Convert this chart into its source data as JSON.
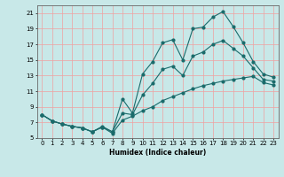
{
  "xlabel": "Humidex (Indice chaleur)",
  "bg_color": "#c8e8e8",
  "grid_color": "#f0a0a0",
  "line_color": "#1a6b6b",
  "xlim": [
    -0.5,
    23.5
  ],
  "ylim": [
    5,
    22
  ],
  "xticks": [
    0,
    1,
    2,
    3,
    4,
    5,
    6,
    7,
    8,
    9,
    10,
    11,
    12,
    13,
    14,
    15,
    16,
    17,
    18,
    19,
    20,
    21,
    22,
    23
  ],
  "yticks": [
    5,
    7,
    9,
    11,
    13,
    15,
    17,
    19,
    21
  ],
  "line_top_x": [
    0,
    1,
    2,
    3,
    4,
    5,
    6,
    7,
    8,
    9,
    10,
    11,
    12,
    13,
    14,
    15,
    16,
    17,
    18,
    19,
    20,
    21,
    22,
    23
  ],
  "line_top_y": [
    8.0,
    7.2,
    6.8,
    6.5,
    6.3,
    5.8,
    6.4,
    5.8,
    10.0,
    8.2,
    13.2,
    14.8,
    17.2,
    17.6,
    15.0,
    19.0,
    19.2,
    20.5,
    21.2,
    19.3,
    17.2,
    14.8,
    13.2,
    12.8
  ],
  "line_mid_x": [
    0,
    1,
    2,
    3,
    4,
    5,
    6,
    7,
    8,
    9,
    10,
    11,
    12,
    13,
    14,
    15,
    16,
    17,
    18,
    19,
    20,
    21,
    22,
    23
  ],
  "line_mid_y": [
    8.0,
    7.2,
    6.8,
    6.5,
    6.3,
    5.8,
    6.5,
    5.8,
    8.2,
    8.0,
    10.5,
    12.0,
    13.8,
    14.2,
    13.0,
    15.5,
    16.0,
    17.0,
    17.5,
    16.5,
    15.5,
    14.0,
    12.5,
    12.3
  ],
  "line_bot_x": [
    0,
    1,
    2,
    3,
    4,
    5,
    6,
    7,
    8,
    9,
    10,
    11,
    12,
    13,
    14,
    15,
    16,
    17,
    18,
    19,
    20,
    21,
    22,
    23
  ],
  "line_bot_y": [
    8.0,
    7.2,
    6.8,
    6.5,
    6.3,
    5.8,
    6.4,
    5.6,
    7.3,
    7.8,
    8.5,
    9.0,
    9.8,
    10.3,
    10.8,
    11.3,
    11.7,
    12.0,
    12.3,
    12.5,
    12.7,
    12.9,
    12.1,
    11.8
  ]
}
